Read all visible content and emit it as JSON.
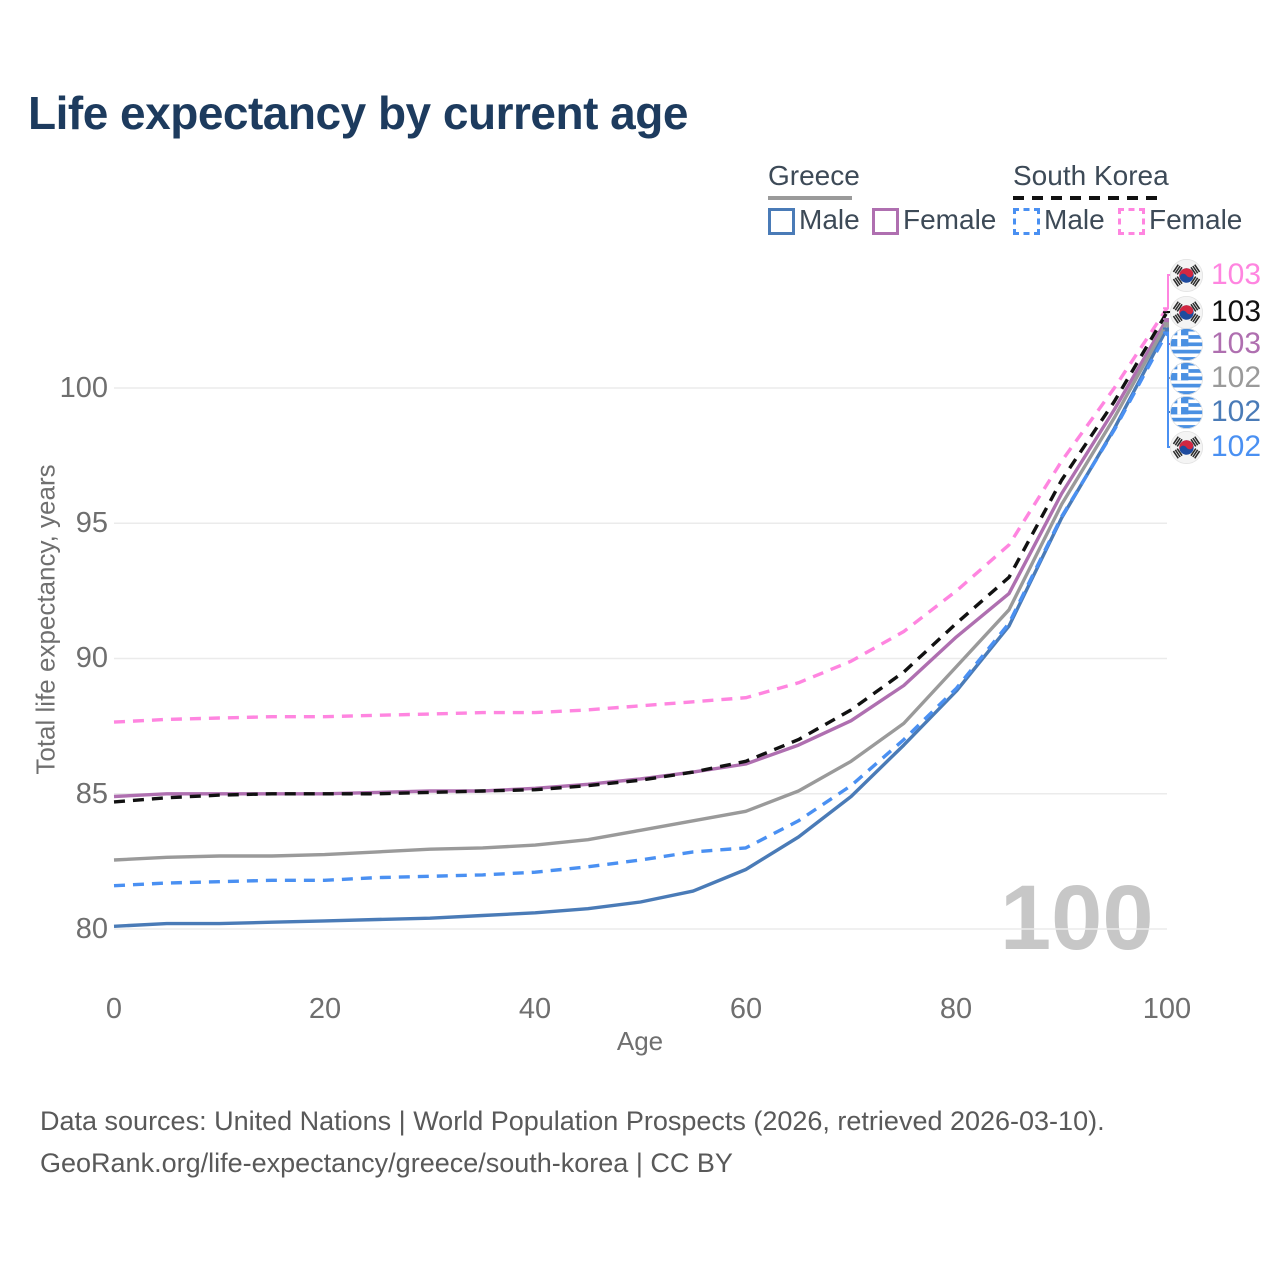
{
  "title": "Life expectancy by current age",
  "legend": {
    "groups": [
      {
        "label": "Greece",
        "line_style": "solid",
        "line_color": "#9a9a9a",
        "items": [
          {
            "label": "Male",
            "color": "#4a7bb7",
            "style": "solid"
          },
          {
            "label": "Female",
            "color": "#af6fb0",
            "style": "solid"
          }
        ]
      },
      {
        "label": "South Korea",
        "line_style": "dashed",
        "line_color": "#111111",
        "items": [
          {
            "label": "Male",
            "color": "#4a90f2",
            "style": "dashed"
          },
          {
            "label": "Female",
            "color": "#ff85e0",
            "style": "dashed"
          }
        ]
      }
    ]
  },
  "chart_data": {
    "type": "line",
    "title": "Life expectancy by current age",
    "xlabel": "Age",
    "ylabel": "Total life expectancy, years",
    "xlim": [
      0,
      100
    ],
    "ylim": [
      78.5,
      103.5
    ],
    "x_ticks": [
      "0",
      "20",
      "40",
      "60",
      "80",
      "100"
    ],
    "y_ticks": [
      "100",
      "95",
      "90",
      "85",
      "80"
    ],
    "grid": "horizontal-only",
    "legend_position": "top-right",
    "x": [
      0,
      5,
      10,
      15,
      20,
      25,
      30,
      35,
      40,
      45,
      50,
      55,
      60,
      65,
      70,
      75,
      80,
      85,
      90,
      95,
      100
    ],
    "series": [
      {
        "name": "greece_male",
        "country": "Greece",
        "sex": "Male",
        "style": "solid",
        "color": "#4a7bb7",
        "values": [
          80.1,
          80.2,
          80.2,
          80.25,
          80.3,
          80.35,
          80.4,
          80.5,
          80.6,
          80.75,
          81.0,
          81.4,
          82.2,
          83.4,
          84.9,
          86.8,
          88.8,
          91.2,
          95.2,
          98.5,
          102.2
        ]
      },
      {
        "name": "greece_female",
        "country": "Greece",
        "sex": "Female",
        "style": "solid",
        "color": "#af6fb0",
        "values": [
          84.9,
          85.0,
          85.0,
          85.0,
          85.0,
          85.05,
          85.1,
          85.1,
          85.2,
          85.35,
          85.55,
          85.8,
          86.1,
          86.8,
          87.7,
          89.0,
          90.8,
          92.4,
          96.1,
          99.2,
          102.55
        ]
      },
      {
        "name": "greece_all",
        "country": "Greece",
        "sex": "Both",
        "style": "solid",
        "color": "#9a9a9a",
        "values": [
          82.55,
          82.65,
          82.7,
          82.7,
          82.75,
          82.85,
          82.95,
          83.0,
          83.1,
          83.3,
          83.65,
          84.0,
          84.35,
          85.1,
          86.2,
          87.6,
          89.7,
          91.8,
          95.7,
          98.9,
          102.4
        ]
      },
      {
        "name": "south_korea_male",
        "country": "South Korea",
        "sex": "Male",
        "style": "dashed",
        "color": "#4a90f2",
        "values": [
          81.6,
          81.7,
          81.75,
          81.8,
          81.8,
          81.9,
          81.95,
          82.0,
          82.1,
          82.3,
          82.55,
          82.85,
          83.0,
          84.0,
          85.3,
          87.0,
          88.9,
          91.3,
          95.25,
          98.45,
          102.05
        ]
      },
      {
        "name": "south_korea_female",
        "country": "South Korea",
        "sex": "Female",
        "style": "dashed",
        "color": "#ff85e0",
        "values": [
          87.65,
          87.75,
          87.8,
          87.85,
          87.85,
          87.9,
          87.95,
          88.0,
          88.0,
          88.1,
          88.25,
          88.4,
          88.55,
          89.1,
          89.9,
          91.0,
          92.5,
          94.2,
          97.3,
          100.0,
          102.95
        ]
      },
      {
        "name": "south_korea_all",
        "country": "South Korea",
        "sex": "Both",
        "style": "dashed",
        "color": "#111111",
        "values": [
          84.7,
          84.85,
          84.95,
          85.0,
          85.0,
          85.0,
          85.05,
          85.1,
          85.15,
          85.3,
          85.5,
          85.8,
          86.2,
          87.0,
          88.1,
          89.5,
          91.3,
          93.0,
          96.6,
          99.5,
          102.8
        ]
      }
    ],
    "end_labels": [
      {
        "series": "south_korea_female",
        "flag": "south-korea",
        "value": "103",
        "color": "#ff85e0"
      },
      {
        "series": "south_korea_all",
        "flag": "south-korea",
        "value": "103",
        "color": "#111111"
      },
      {
        "series": "greece_female",
        "flag": "greece",
        "value": "103",
        "color": "#af6fb0"
      },
      {
        "series": "greece_all",
        "flag": "greece",
        "value": "102",
        "color": "#9a9a9a"
      },
      {
        "series": "greece_male",
        "flag": "greece",
        "value": "102",
        "color": "#4a7bb7"
      },
      {
        "series": "south_korea_male",
        "flag": "south-korea",
        "value": "102",
        "color": "#4a90f2"
      }
    ]
  },
  "watermark": "100",
  "footer": {
    "line1": "Data sources: United Nations | World Population Prospects (2026, retrieved 2026-03-10).",
    "line2": "GeoRank.org/life-expectancy/greece/south-korea | CC BY"
  }
}
